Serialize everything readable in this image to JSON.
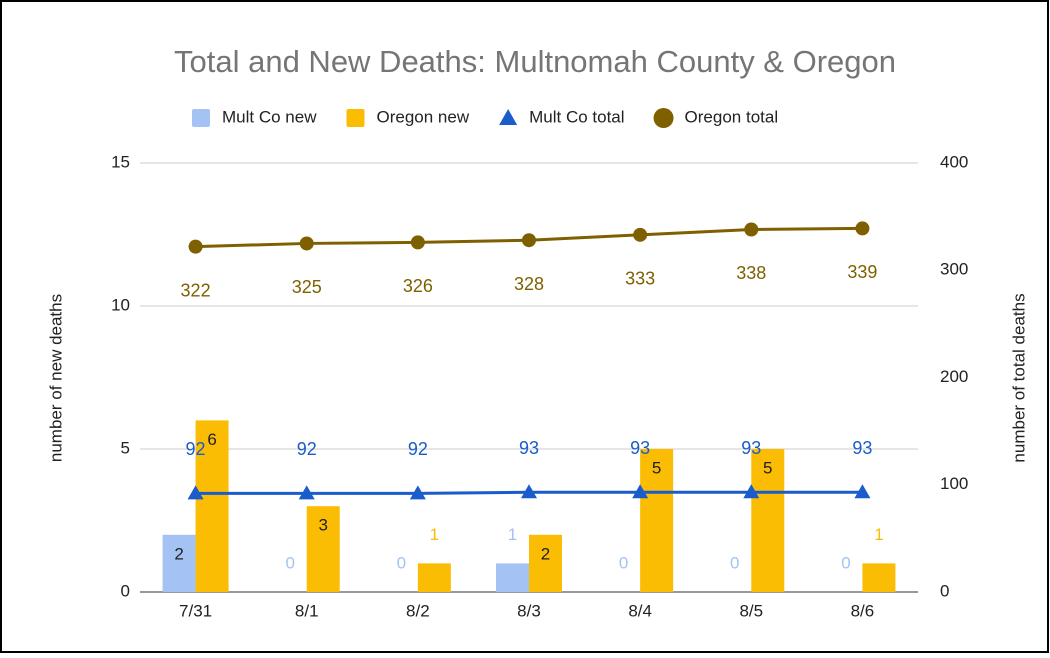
{
  "chart_data": {
    "type": "combo",
    "title": "Total and New Deaths: Multnomah County & Oregon",
    "categories": [
      "7/31",
      "8/1",
      "8/2",
      "8/3",
      "8/4",
      "8/5",
      "8/6"
    ],
    "y_label": "number of new deaths",
    "y2_label": "number of total deaths",
    "ylim": [
      0,
      15
    ],
    "yticks": [
      0,
      5,
      10,
      15
    ],
    "y2lim": [
      0,
      400
    ],
    "y2ticks": [
      0,
      100,
      200,
      300,
      400
    ],
    "grid": true,
    "legend": "top",
    "series": [
      {
        "name": "Mult Co new",
        "type": "bar",
        "color": "#a4c2f4",
        "values": [
          2,
          0,
          0,
          1,
          0,
          0,
          0
        ]
      },
      {
        "name": "Oregon new",
        "type": "bar",
        "color": "#fbbc04",
        "values": [
          6,
          3,
          1,
          2,
          5,
          5,
          1
        ]
      },
      {
        "name": "Mult Co total",
        "type": "line",
        "axis": "y2",
        "marker": "triangle",
        "color": "#1a5ccc",
        "values": [
          92,
          92,
          92,
          93,
          93,
          93,
          93
        ]
      },
      {
        "name": "Oregon total",
        "type": "line",
        "axis": "y2",
        "marker": "circle",
        "color": "#7f6000",
        "values": [
          322,
          325,
          326,
          328,
          333,
          338,
          339
        ]
      }
    ]
  }
}
